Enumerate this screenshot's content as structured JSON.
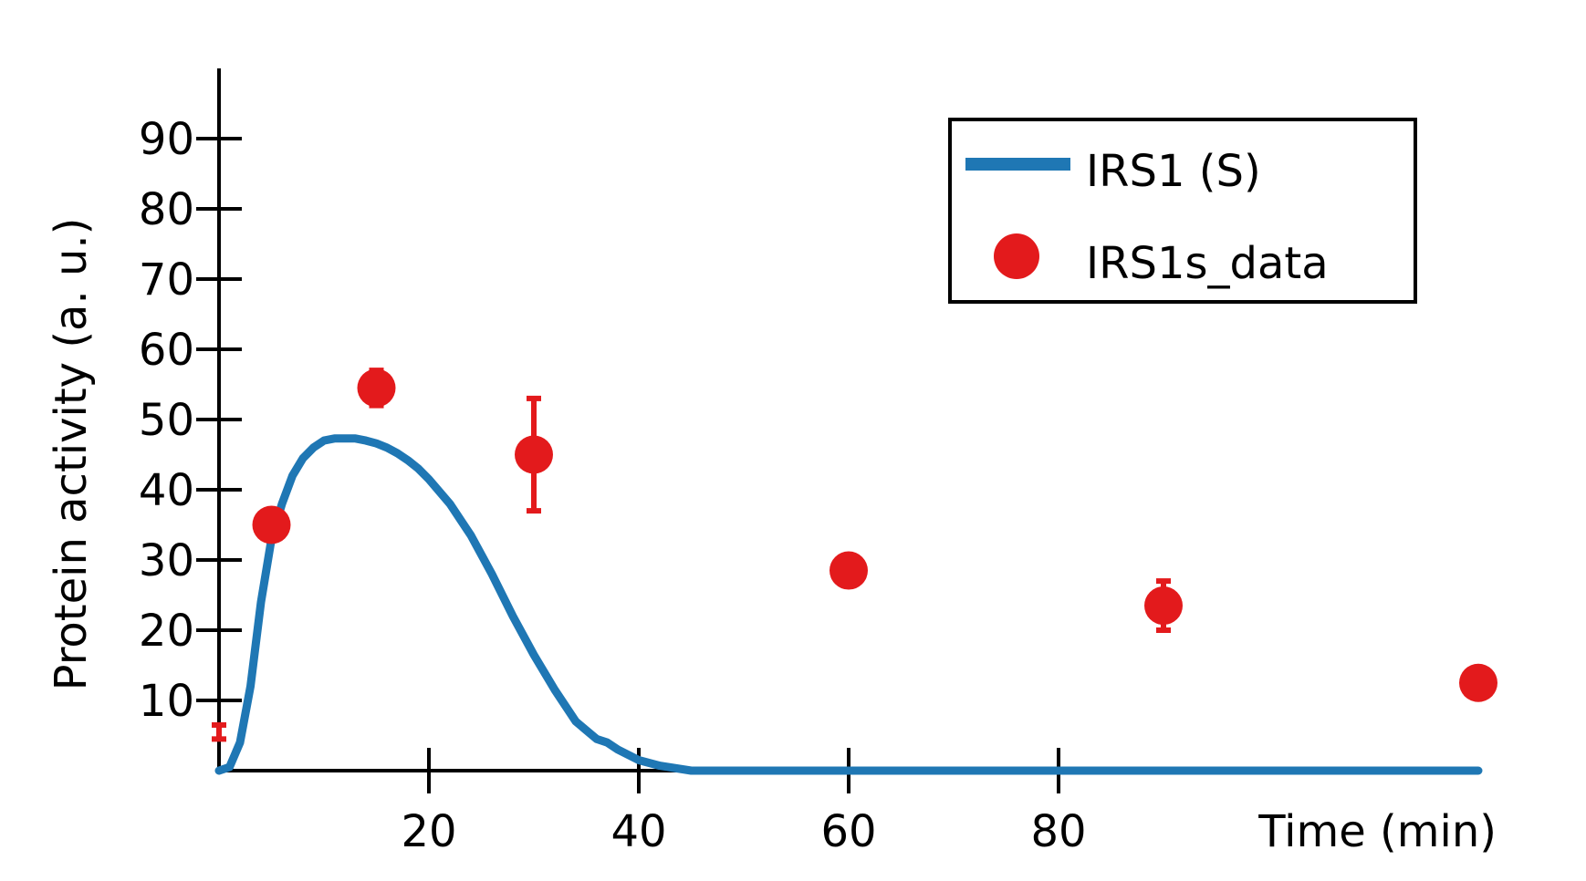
{
  "chart_data": {
    "type": "line",
    "xlabel": "Time (min)",
    "ylabel": "Protein activity (a. u.)",
    "xlim": [
      0,
      120
    ],
    "ylim": [
      0,
      100
    ],
    "xticks": [
      20,
      40,
      60,
      80
    ],
    "yticks": [
      10,
      20,
      30,
      40,
      50,
      60,
      70,
      80,
      90
    ],
    "grid": false,
    "legend_position": "top-right",
    "series": [
      {
        "name": "IRS1 (S)",
        "kind": "line",
        "color": "#1f77b4",
        "x": [
          0,
          1,
          2,
          3,
          4,
          5,
          6,
          7,
          8,
          9,
          10,
          11,
          12,
          13,
          14,
          15,
          16,
          17,
          18,
          19,
          20,
          22,
          24,
          26,
          28,
          30,
          32,
          34,
          36,
          37,
          38,
          40,
          42,
          45,
          50,
          60,
          70,
          80,
          90,
          100,
          110,
          120
        ],
        "y": [
          0,
          0.5,
          4,
          12,
          24,
          33,
          38,
          42,
          44.5,
          46,
          47,
          47.3,
          47.3,
          47.3,
          47,
          46.6,
          46,
          45.2,
          44.2,
          43,
          41.5,
          38,
          33.5,
          28,
          22,
          16.5,
          11.5,
          7,
          4.5,
          4,
          3,
          1.5,
          0.7,
          0,
          0,
          0,
          0,
          0,
          0,
          0,
          0,
          0
        ]
      },
      {
        "name": "IRS1s_data",
        "kind": "scatter",
        "color": "#e31a1c",
        "x": [
          0,
          5,
          15,
          30,
          60,
          90,
          120
        ],
        "y": [
          5.5,
          35,
          54.5,
          45,
          28.5,
          23.5,
          12.5
        ],
        "err": [
          1,
          0.5,
          2.5,
          8,
          2,
          3.5,
          0.5
        ]
      }
    ]
  }
}
